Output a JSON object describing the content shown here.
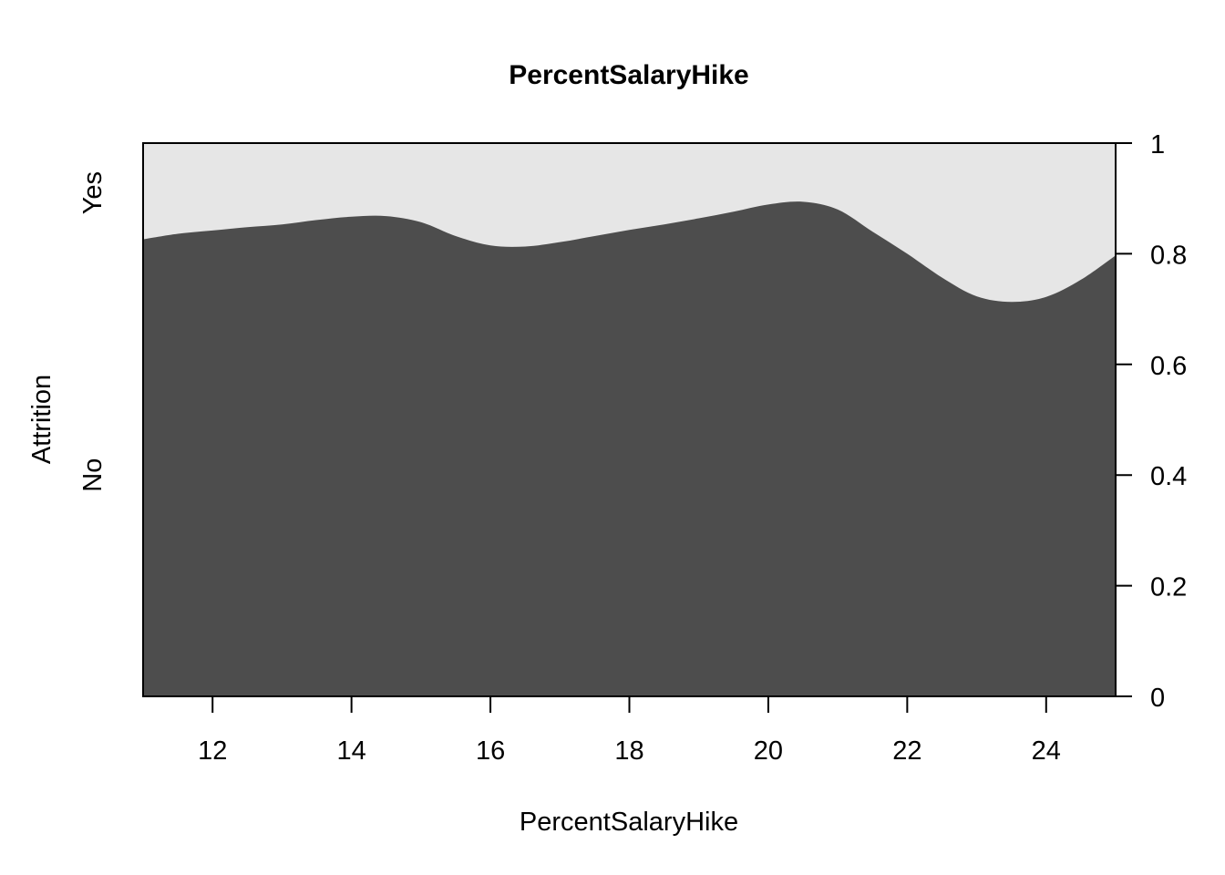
{
  "chart_data": {
    "type": "area",
    "subtype": "conditional-density",
    "title": "PercentSalaryHike",
    "xlabel": "PercentSalaryHike",
    "ylabel": "Attrition",
    "xlim": [
      11,
      25
    ],
    "ylim": [
      0,
      1
    ],
    "x_ticks": [
      12,
      14,
      16,
      18,
      20,
      22,
      24
    ],
    "y_ticks_right": [
      {
        "value": 0,
        "label": "0"
      },
      {
        "value": 0.2,
        "label": "0.2"
      },
      {
        "value": 0.4,
        "label": "0.4"
      },
      {
        "value": 0.6,
        "label": "0.6"
      },
      {
        "value": 0.8,
        "label": "0.8"
      },
      {
        "value": 1,
        "label": "1"
      }
    ],
    "categories": [
      "No",
      "Yes"
    ],
    "category_label_values": [
      {
        "name": "No",
        "value": 0.4
      },
      {
        "name": "Yes",
        "value": 0.91
      }
    ],
    "colors": {
      "No": "#4d4d4d",
      "Yes": "#e6e6e6",
      "frame": "#000000"
    },
    "series": [
      {
        "name": "No",
        "x": [
          11,
          11.5,
          12,
          12.5,
          13,
          13.5,
          14,
          14.5,
          15,
          15.5,
          16,
          16.5,
          17,
          17.5,
          18,
          18.5,
          19,
          19.5,
          20,
          20.5,
          21,
          21.5,
          22,
          22.5,
          23,
          23.5,
          24,
          24.5,
          25
        ],
        "values": [
          0.826,
          0.836,
          0.842,
          0.848,
          0.853,
          0.861,
          0.867,
          0.868,
          0.857,
          0.832,
          0.815,
          0.813,
          0.821,
          0.832,
          0.843,
          0.853,
          0.864,
          0.876,
          0.889,
          0.894,
          0.88,
          0.84,
          0.8,
          0.757,
          0.723,
          0.713,
          0.722,
          0.753,
          0.797
        ]
      }
    ]
  }
}
